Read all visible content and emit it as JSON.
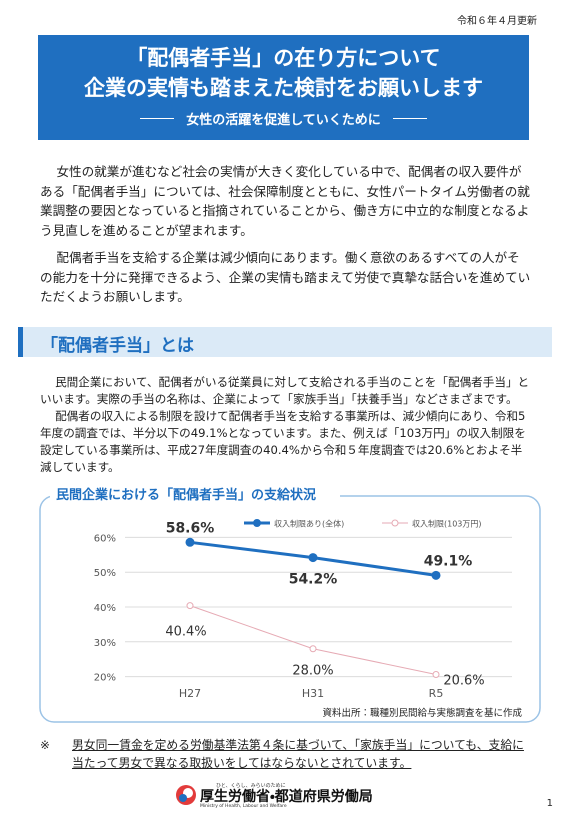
{
  "header": {
    "update": "令和６年４月更新",
    "title_lines": [
      "「配偶者手当」の在り方について",
      "企業の実情も踏まえた検討をお願いします"
    ],
    "subtitle": "女性の活躍を促進していくために"
  },
  "intro": [
    "女性の就業が進むなど社会の実情が大きく変化している中で、配偶者の収入要件がある「配偶者手当」については、社会保障制度とともに、女性パートタイム労働者の就業調整の要因となっていると指摘されていることから、働き方に中立的な制度となるよう見直しを進めることが望まれます。",
    "配偶者手当を支給する企業は減少傾向にあります。働く意欲のあるすべての人がその能力を十分に発揮できるよう、企業の実情も踏まえて労使で真摯な話合いを進めていただくようお願いします。"
  ],
  "section": {
    "heading": "「配偶者手当」とは",
    "paragraphs": [
      "民間企業において、配偶者がいる従業員に対して支給される手当のことを「配偶者手当」といいます。実際の手当の名称は、企業によって「家族手当」「扶養手当」などさまざまです。",
      "配偶者の収入による制限を設けて配偶者手当を支給する事業所は、減少傾向にあり、令和5年度の調査では、半分以下の49.1%となっています。また、例えば「103万円」の収入制限を設定している事業所は、平成27年度調査の40.4%から令和５年度調査では20.6%とおよそ半減しています。"
    ]
  },
  "chart_data": {
    "type": "line",
    "title": "民間企業における「配偶者手当」の支給状況",
    "categories": [
      "H27",
      "H31",
      "R5"
    ],
    "series": [
      {
        "name": "収入制限あり(全体)",
        "color": "#1f6fc0",
        "values": [
          58.6,
          54.2,
          49.1
        ],
        "value_labels": [
          "58.6%",
          "54.2%",
          "49.1%"
        ]
      },
      {
        "name": "収入制限(103万円)",
        "color": "#e6aab4",
        "values": [
          40.4,
          28.0,
          20.6
        ],
        "value_labels": [
          "40.4%",
          "28.0%",
          "20.6%"
        ]
      }
    ],
    "ylim": [
      17,
      63
    ],
    "yticks": [
      {
        "value": 20,
        "label": "20%"
      },
      {
        "value": 30,
        "label": "30%"
      },
      {
        "value": 40,
        "label": "40%"
      },
      {
        "value": 50,
        "label": "50%"
      },
      {
        "value": 60,
        "label": "60%"
      }
    ],
    "grid": true,
    "legend": "top",
    "source": "資料出所：職種別民間給与実態調査を基に作成"
  },
  "note": {
    "mark": "※",
    "text": "男女同一賃金を定める労働基準法第４条に基づいて、「家族手当」についても、支給に当たって男女で異なる取扱いをしてはならないとされています。"
  },
  "footer": {
    "tagline": "ひと、くらし、みらいのために",
    "ministry_en": "Ministry of Health, Labour and Welfare",
    "org": "厚生労働省・都道府県労働局",
    "page": "1"
  }
}
